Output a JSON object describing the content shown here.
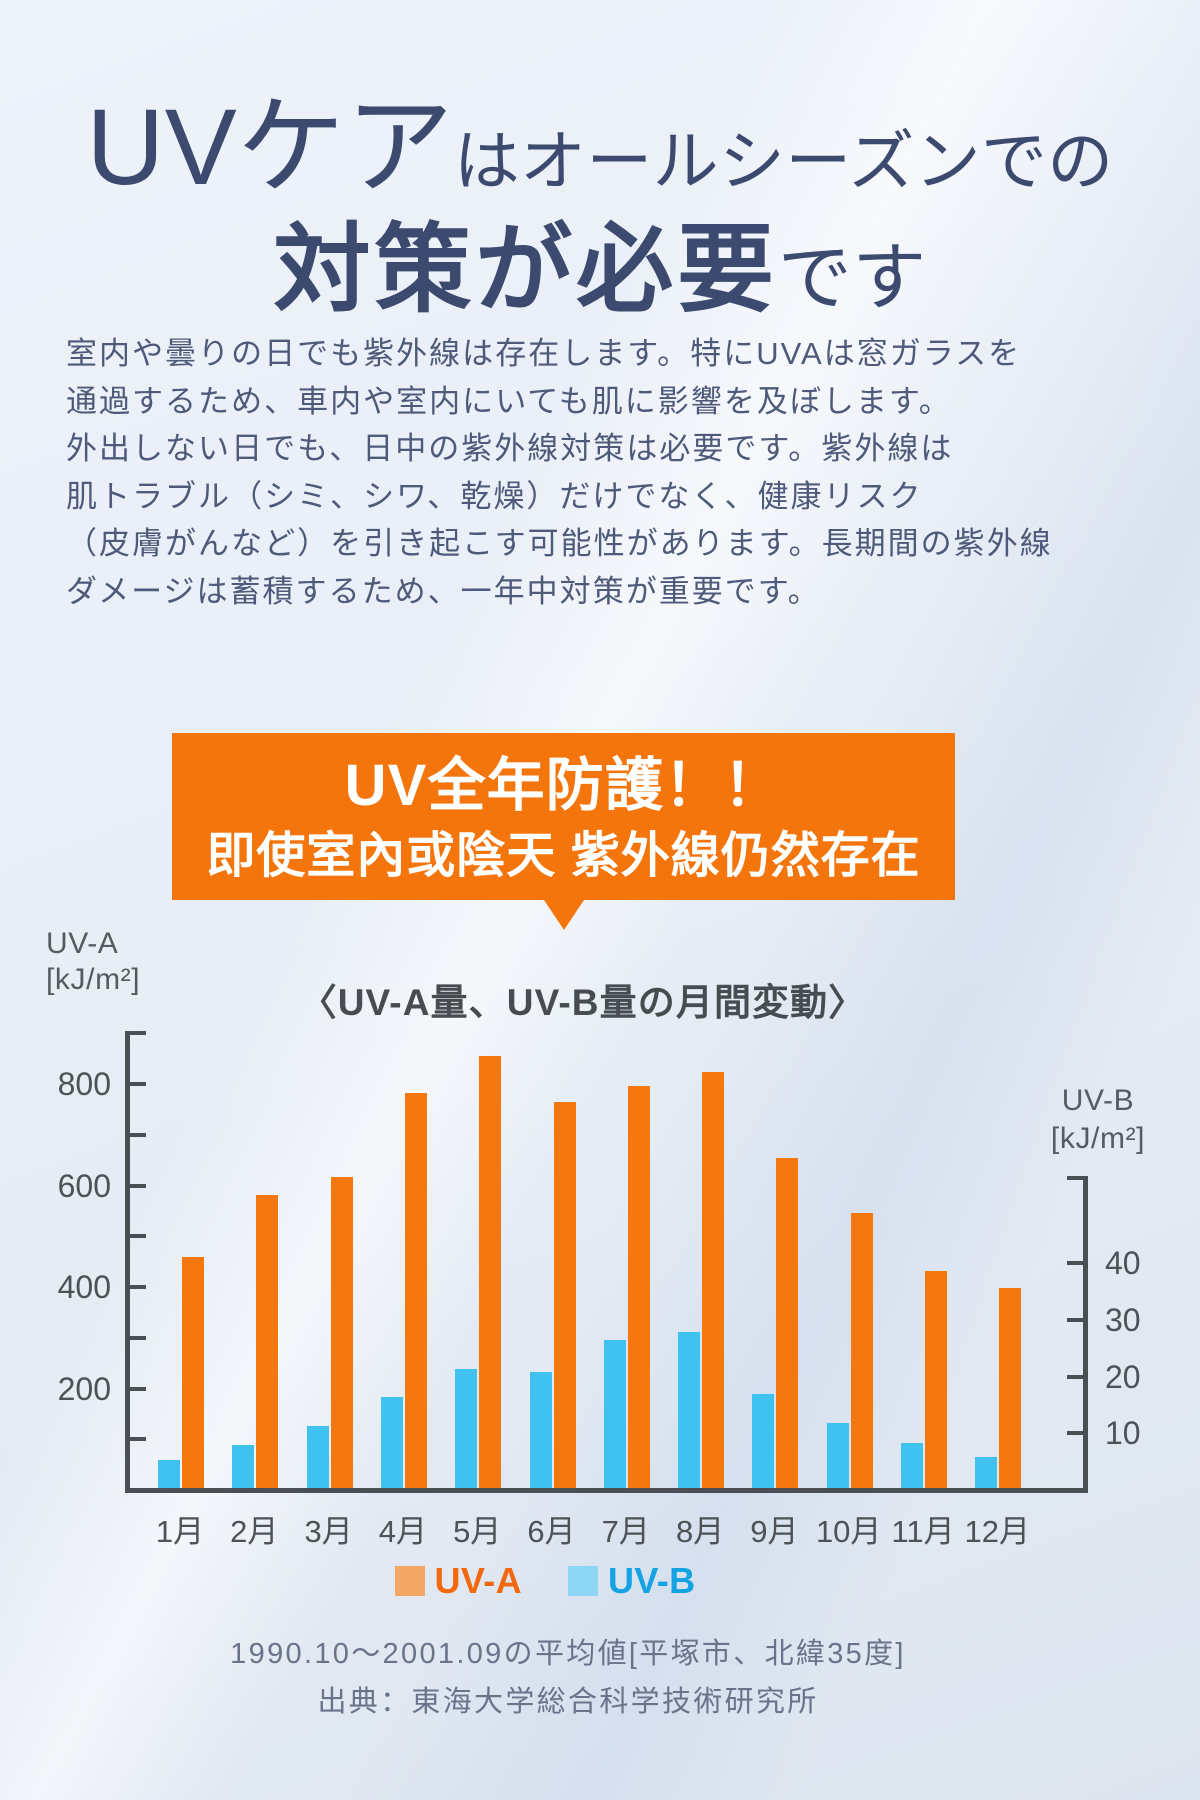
{
  "header": {
    "title_line1_em": "UVケア",
    "title_line1_rest": "はオールシーズンでの",
    "title_line2_em": "対策が必要",
    "title_line2_rest": "です"
  },
  "intro": {
    "lines": [
      "室内や曇りの日でも紫外線は存在します。特にUVAは窓ガラスを",
      "通過するため、車内や室内にいても肌に影響を及ぼします。",
      "外出しない日でも、日中の紫外線対策は必要です。紫外線は",
      "肌トラブル（シミ、シワ、乾燥）だけでなく、健康リスク",
      "（皮膚がんなど）を引き起こす可能性があります。長期間の紫外線",
      "ダメージは蓄積するため、一年中対策が重要です。"
    ]
  },
  "banner": {
    "line1": "UV全年防護！！",
    "line2": "即使室內或陰天 紫外線仍然存在",
    "color": "#f4750c"
  },
  "chart_data": {
    "type": "bar",
    "title": "〈UV-A量、UV-B量の月間変動〉",
    "categories": [
      "1月",
      "2月",
      "3月",
      "4月",
      "5月",
      "6月",
      "7月",
      "8月",
      "9月",
      "10月",
      "11月",
      "12月"
    ],
    "series": [
      {
        "name": "UV-A",
        "axis": "left",
        "color": "#f4780d",
        "swatch": "#f2a766",
        "label_color": "#f3680c",
        "values": [
          455,
          578,
          612,
          778,
          852,
          760,
          793,
          820,
          650,
          542,
          428,
          395
        ]
      },
      {
        "name": "UV-B",
        "axis": "right",
        "color": "#3fc2ef",
        "swatch": "#8ed7f4",
        "label_color": "#13a3e3",
        "values": [
          5,
          7.5,
          11,
          16,
          21,
          20.5,
          26,
          27.5,
          16.5,
          11.5,
          8,
          5.5
        ]
      }
    ],
    "left_axis": {
      "label_line1": "UV-A",
      "label_line2": "[kJ/m²]",
      "ticks": [
        200,
        400,
        600,
        800
      ],
      "minor_ticks": [
        100,
        300,
        500,
        700
      ],
      "range": [
        0,
        900
      ]
    },
    "right_axis": {
      "label_line1": "UV-B",
      "label_line2": "[kJ/m²]",
      "ticks": [
        10,
        20,
        30,
        40
      ],
      "minor_ticks": [],
      "range": [
        0,
        55
      ]
    },
    "grid": false,
    "legend_position": "bottom",
    "source_line1": "1990.10〜2001.09の平均値[平塚市、北緯35度]",
    "source_line2": "出典：東海大学総合科学技術研究所"
  }
}
